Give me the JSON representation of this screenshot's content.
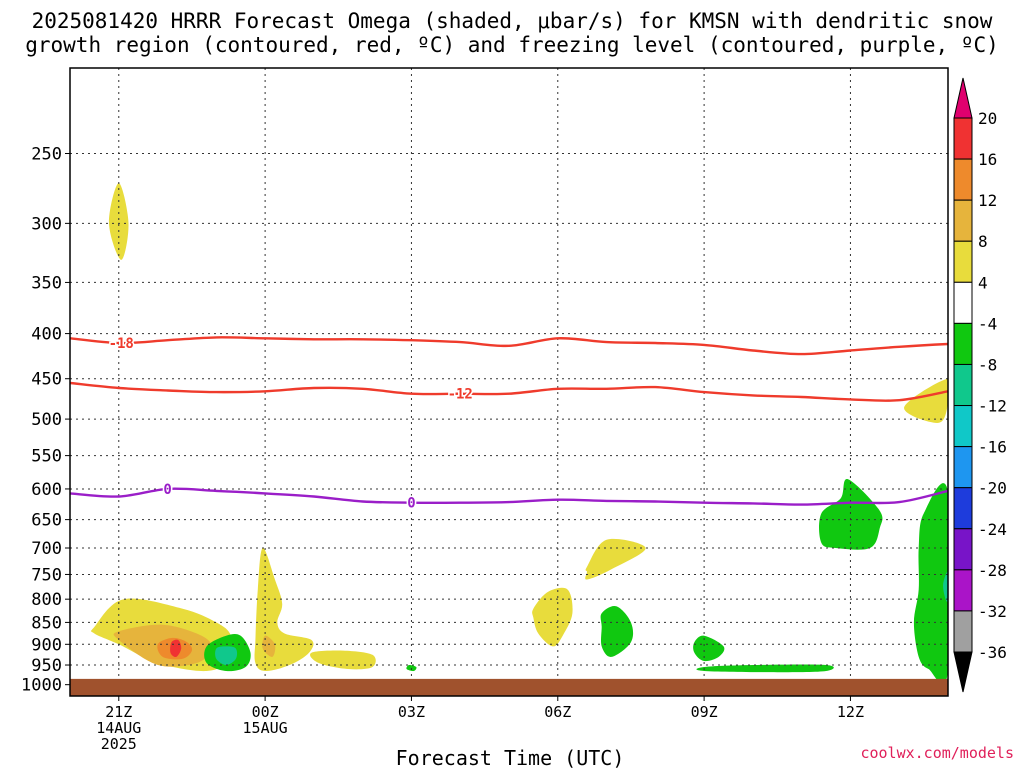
{
  "title_line1": "2025081420 HRRR Forecast Omega (shaded, μbar/s) for KMSN with dendritic snow",
  "title_line2": "growth region (contoured, red, ºC) and freezing level (contoured, purple, ºC)",
  "credit": "coolwx.com/models",
  "chart_data": {
    "type": "heatmap",
    "title": "2025081420 HRRR Forecast Omega (shaded, μbar/s) for KMSN with dendritic snow growth region (contoured, red, ºC) and freezing level (contoured, purple, ºC)",
    "xlabel": "Forecast Time (UTC)",
    "ylabel": "",
    "x_unit": "hours after 2025-08-14 20Z",
    "xlim": [
      0,
      18
    ],
    "ylim": [
      1030,
      200
    ],
    "y_scale": "log-pressure",
    "y_ticks": [
      250,
      300,
      350,
      400,
      450,
      500,
      550,
      600,
      650,
      700,
      750,
      800,
      850,
      900,
      950,
      1000
    ],
    "x_ticks": [
      {
        "x": 1,
        "lines": [
          "21Z",
          "14AUG",
          "2025"
        ]
      },
      {
        "x": 4,
        "lines": [
          "00Z",
          "15AUG"
        ]
      },
      {
        "x": 7,
        "lines": [
          "03Z"
        ]
      },
      {
        "x": 10,
        "lines": [
          "06Z"
        ]
      },
      {
        "x": 13,
        "lines": [
          "09Z"
        ]
      },
      {
        "x": 16,
        "lines": [
          "12Z"
        ]
      }
    ],
    "grid": true,
    "ground_level_hpa": 985,
    "colorbar": {
      "labels": [
        "20",
        "16",
        "12",
        "8",
        "4",
        "-4",
        "-8",
        "-12",
        "-16",
        "-20",
        "-24",
        "-28",
        "-32",
        "-36"
      ],
      "colors": [
        "#e0006e",
        "#f03232",
        "#ee8a2c",
        "#e6b43c",
        "#e8dc3c",
        "#ffffff",
        "#10c810",
        "#10c88c",
        "#10c8c8",
        "#1e96f0",
        "#1e3cdc",
        "#7814c8",
        "#aa14c8",
        "#a0a0a0",
        "#000000"
      ]
    },
    "contours": [
      {
        "label": "-18",
        "color": "#ef3b2c",
        "label_x": 1.05,
        "x": [
          0,
          1,
          2,
          3,
          4,
          5,
          6,
          7,
          8,
          9,
          10,
          11,
          12,
          13,
          14,
          15,
          16,
          17,
          18
        ],
        "p": [
          405,
          410,
          407,
          404,
          405,
          406,
          406,
          407,
          409,
          413,
          405,
          409,
          410,
          412,
          418,
          422,
          418,
          414,
          411
        ]
      },
      {
        "label": "-12",
        "color": "#ef3b2c",
        "label_x": 8.0,
        "x": [
          0,
          1,
          2,
          3,
          4,
          5,
          6,
          7,
          8,
          9,
          10,
          11,
          12,
          13,
          14,
          15,
          16,
          17,
          18
        ],
        "p": [
          455,
          461,
          464,
          466,
          465,
          461,
          462,
          468,
          468,
          468,
          462,
          462,
          460,
          466,
          470,
          472,
          475,
          476,
          465
        ]
      },
      {
        "label": "0",
        "color": "#9a1ec8",
        "label_x": 2.0,
        "label_x2": 7.0,
        "x": [
          0,
          1,
          2,
          3,
          4,
          5,
          6,
          7,
          8,
          9,
          10,
          11,
          12,
          13,
          14,
          15,
          16,
          17,
          18
        ],
        "p": [
          607,
          612,
          600,
          603,
          607,
          612,
          620,
          622,
          622,
          621,
          617,
          619,
          620,
          622,
          623,
          625,
          622,
          621,
          603
        ]
      }
    ],
    "omega_regions": [
      {
        "value": 4,
        "color": "#e8dc3c",
        "x": [
          1.0,
          1.2,
          1.05,
          0.8
        ],
        "p": [
          270,
          300,
          330,
          300
        ]
      },
      {
        "value": 4,
        "color": "#e8dc3c",
        "x": [
          18.0,
          17.1,
          17.8,
          18.0
        ],
        "p": [
          450,
          485,
          505,
          480
        ]
      },
      {
        "value": 4,
        "color": "#e8dc3c",
        "x": [
          0.5,
          1.1,
          2.3,
          3.0,
          3.3,
          3.3,
          2.8,
          1.8,
          1.0,
          0.5
        ],
        "p": [
          860,
          800,
          820,
          850,
          880,
          935,
          965,
          945,
          900,
          875
        ]
      },
      {
        "value": 8,
        "color": "#e6b43c",
        "x": [
          1.0,
          1.9,
          2.7,
          2.9,
          2.6,
          1.8,
          1.0
        ],
        "p": [
          870,
          855,
          880,
          910,
          945,
          950,
          890
        ]
      },
      {
        "value": 12,
        "color": "#ee8a2c",
        "x": [
          1.8,
          2.1,
          2.4,
          2.5,
          2.3,
          1.9
        ],
        "p": [
          900,
          885,
          895,
          915,
          935,
          930
        ]
      },
      {
        "value": 16,
        "color": "#f03232",
        "x": [
          2.08,
          2.22,
          2.28,
          2.18,
          2.06
        ],
        "p": [
          895,
          890,
          910,
          930,
          920
        ]
      },
      {
        "value": -8,
        "color": "#10c810",
        "x": [
          3.2,
          3.5,
          3.7,
          3.6,
          3.2,
          2.8,
          2.8
        ],
        "p": [
          880,
          880,
          920,
          955,
          965,
          945,
          905
        ]
      },
      {
        "value": -12,
        "color": "#10c88c",
        "x": [
          3.2,
          3.4,
          3.4,
          3.2,
          3.0,
          3.0
        ],
        "p": [
          905,
          910,
          935,
          950,
          935,
          910
        ]
      },
      {
        "value": 4,
        "color": "#e8dc3c",
        "x": [
          3.95,
          4.2,
          4.35,
          4.25,
          4.4,
          4.95,
          4.9,
          4.5,
          4.0,
          3.8,
          3.8,
          3.85
        ],
        "p": [
          700,
          760,
          810,
          850,
          875,
          890,
          920,
          950,
          965,
          945,
          890,
          780
        ]
      },
      {
        "value": 4,
        "color": "#e8dc3c",
        "x": [
          4.95,
          5.6,
          6.2,
          6.2,
          5.7,
          5.1
        ],
        "p": [
          920,
          915,
          925,
          955,
          960,
          945
        ]
      },
      {
        "value": 8,
        "color": "#e6b43c",
        "x": [
          4.0,
          4.2,
          4.15,
          3.95
        ],
        "p": [
          880,
          900,
          930,
          910
        ]
      },
      {
        "value": -8,
        "color": "#10c810",
        "x": [
          6.95,
          7.1,
          7.05,
          6.9
        ],
        "p": [
          950,
          955,
          965,
          960
        ]
      },
      {
        "value": 4,
        "color": "#e8dc3c",
        "x": [
          9.5,
          9.8,
          10.2,
          10.3,
          10.1,
          9.9,
          9.6,
          9.5
        ],
        "p": [
          820,
          785,
          780,
          830,
          880,
          905,
          875,
          840
        ]
      },
      {
        "value": 4,
        "color": "#e8dc3c",
        "x": [
          10.6,
          11.0,
          11.8,
          11.1,
          10.6,
          10.6
        ],
        "p": [
          735,
          685,
          700,
          740,
          760,
          745
        ]
      },
      {
        "value": -8,
        "color": "#10c810",
        "x": [
          10.9,
          11.2,
          11.5,
          11.5,
          11.1,
          10.9,
          10.9
        ],
        "p": [
          830,
          815,
          850,
          895,
          930,
          905,
          860
        ]
      },
      {
        "value": -8,
        "color": "#10c810",
        "x": [
          12.8,
          13.0,
          13.4,
          13.3,
          13.0,
          12.8
        ],
        "p": [
          895,
          880,
          905,
          930,
          940,
          920
        ]
      },
      {
        "value": -8,
        "color": "#10c810",
        "x": [
          13.0,
          14.0,
          15.5,
          15.5,
          14.5,
          13.0
        ],
        "p": [
          955,
          950,
          950,
          965,
          968,
          965
        ]
      },
      {
        "value": -8,
        "color": "#10c810",
        "x": [
          15.4,
          15.8,
          15.95,
          16.6,
          16.6,
          16.4,
          15.7,
          15.4
        ],
        "p": [
          640,
          615,
          585,
          635,
          665,
          700,
          700,
          690
        ]
      },
      {
        "value": -8,
        "color": "#10c810",
        "x": [
          18.0,
          17.5,
          17.4,
          17.4,
          17.3,
          17.4,
          17.6,
          18.0
        ],
        "p": [
          605,
          640,
          700,
          780,
          850,
          930,
          960,
          965
        ]
      },
      {
        "value": -12,
        "color": "#10c88c",
        "x": [
          18.0,
          17.9,
          17.95,
          18.0
        ],
        "p": [
          745,
          770,
          800,
          800
        ]
      }
    ]
  }
}
